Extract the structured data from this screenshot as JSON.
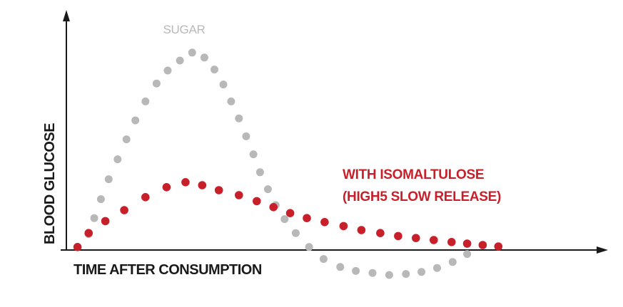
{
  "chart_data": {
    "type": "scatter",
    "xlabel": "TIME AFTER CONSUMPTION",
    "ylabel": "BLOOD GLUCOSE",
    "grid": false,
    "series": [
      {
        "name": "SUGAR",
        "color": "#b8b8b8",
        "points": [
          [
            0.04,
            0.08
          ],
          [
            0.05,
            0.16
          ],
          [
            0.062,
            0.255
          ],
          [
            0.076,
            0.355
          ],
          [
            0.092,
            0.455
          ],
          [
            0.108,
            0.555
          ],
          [
            0.124,
            0.65
          ],
          [
            0.142,
            0.745
          ],
          [
            0.162,
            0.835
          ],
          [
            0.182,
            0.9
          ],
          [
            0.204,
            0.95
          ],
          [
            0.226,
            0.99
          ],
          [
            0.248,
            0.965
          ],
          [
            0.266,
            0.905
          ],
          [
            0.282,
            0.83
          ],
          [
            0.296,
            0.745
          ],
          [
            0.31,
            0.66
          ],
          [
            0.323,
            0.57
          ],
          [
            0.336,
            0.48
          ],
          [
            0.348,
            0.39
          ],
          [
            0.362,
            0.305
          ],
          [
            0.376,
            0.225
          ],
          [
            0.392,
            0.155
          ],
          [
            0.412,
            0.085
          ],
          [
            0.436,
            0.015
          ],
          [
            0.462,
            -0.045
          ],
          [
            0.492,
            -0.085
          ],
          [
            0.52,
            -0.105
          ],
          [
            0.55,
            -0.115
          ],
          [
            0.58,
            -0.125
          ],
          [
            0.61,
            -0.12
          ],
          [
            0.638,
            -0.11
          ],
          [
            0.666,
            -0.09
          ],
          [
            0.694,
            -0.06
          ],
          [
            0.72,
            -0.02
          ]
        ]
      },
      {
        "name": "WITH ISOMALTULOSE (HIGH5 SLOW RELEASE)",
        "color": "#c8202a",
        "points": [
          [
            0.02,
            0.015
          ],
          [
            0.04,
            0.085
          ],
          [
            0.07,
            0.145
          ],
          [
            0.104,
            0.2
          ],
          [
            0.142,
            0.265
          ],
          [
            0.18,
            0.315
          ],
          [
            0.214,
            0.34
          ],
          [
            0.244,
            0.325
          ],
          [
            0.274,
            0.3
          ],
          [
            0.31,
            0.275
          ],
          [
            0.342,
            0.245
          ],
          [
            0.372,
            0.215
          ],
          [
            0.402,
            0.185
          ],
          [
            0.432,
            0.16
          ],
          [
            0.464,
            0.14
          ],
          [
            0.498,
            0.12
          ],
          [
            0.53,
            0.1
          ],
          [
            0.564,
            0.085
          ],
          [
            0.596,
            0.07
          ],
          [
            0.628,
            0.06
          ],
          [
            0.66,
            0.05
          ],
          [
            0.692,
            0.04
          ],
          [
            0.72,
            0.032
          ],
          [
            0.748,
            0.025
          ],
          [
            0.776,
            0.018
          ]
        ]
      }
    ]
  }
}
